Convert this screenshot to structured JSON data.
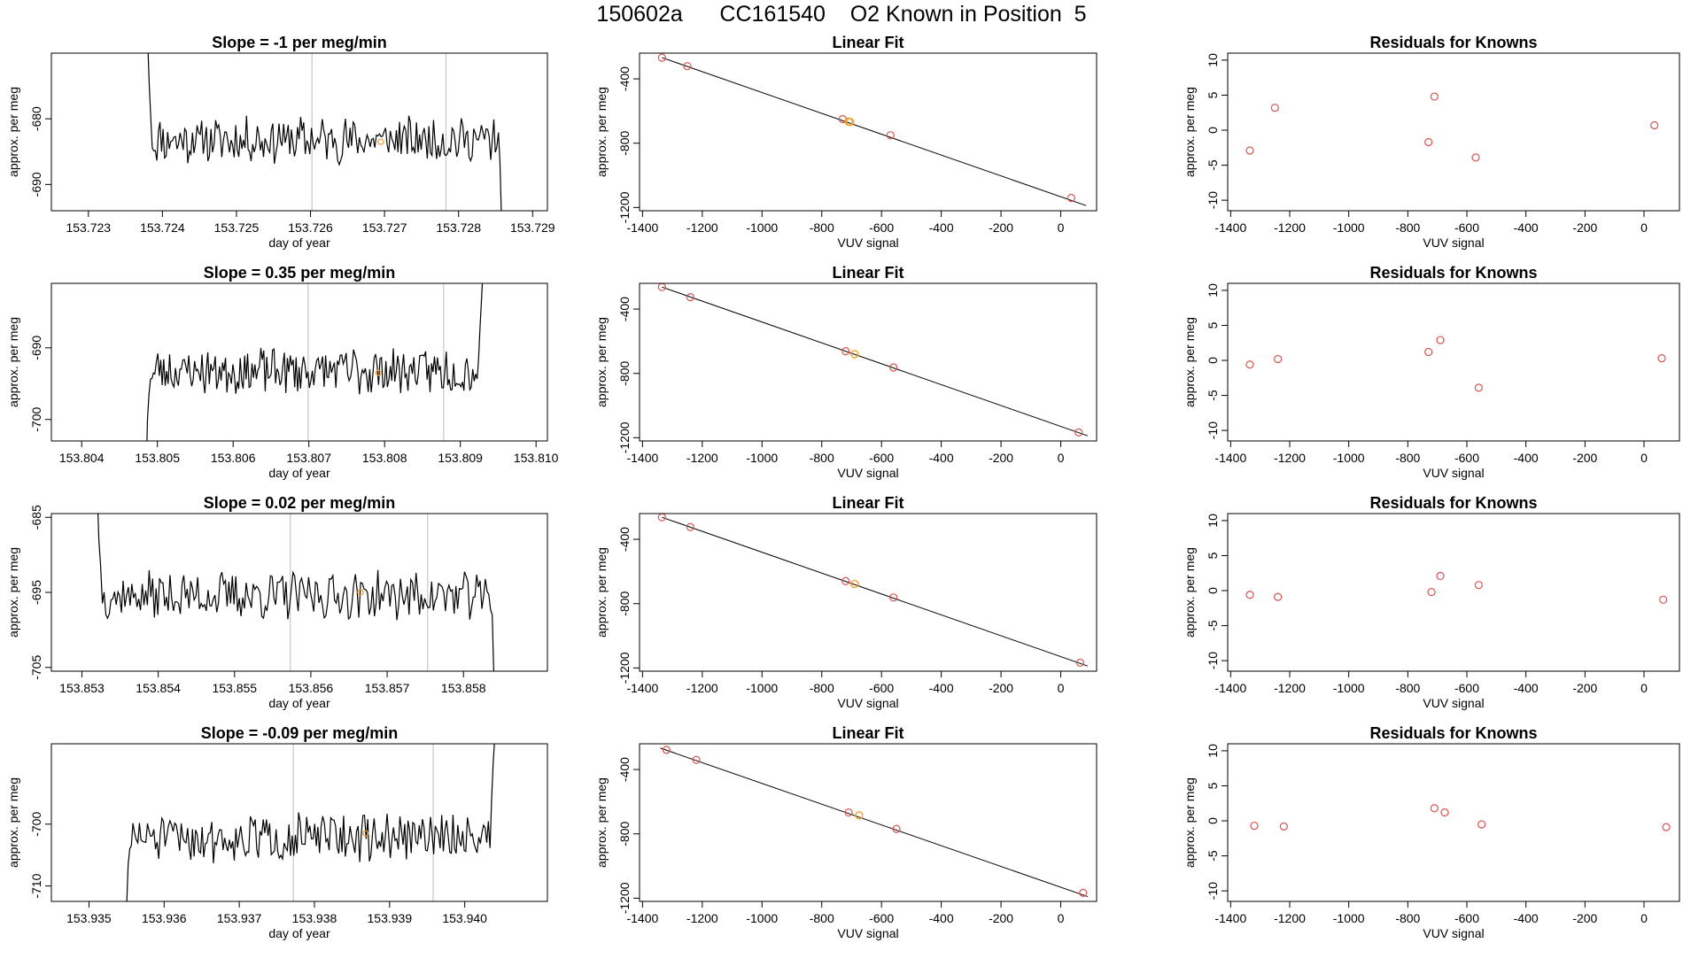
{
  "figure": {
    "title": "150602a      CC161540    O2 Known in Position  5"
  },
  "colors": {
    "trace": "#000000",
    "highlight": "#f0a030",
    "residual": "#d9534f",
    "vline": "#c8c8c8"
  },
  "chart_data": [
    {
      "id": "r1-timeseries",
      "type": "line",
      "title": "Slope =  -1  per meg/min",
      "xlabel": "day of year",
      "ylabel": "approx. per meg",
      "xlim": [
        153.7225,
        153.7292
      ],
      "ylim": [
        -694,
        -670
      ],
      "xticks": [
        153.723,
        153.724,
        153.725,
        153.726,
        153.727,
        153.728,
        153.729
      ],
      "xtick_labels": [
        "153.723",
        "153.724",
        "153.725",
        "153.726",
        "153.727",
        "153.728",
        "153.729"
      ],
      "yticks": [
        -680,
        -690
      ],
      "ytick_labels": [
        "-680",
        "-690"
      ],
      "vlines": [
        153.72602,
        153.72783
      ],
      "series_start": 153.7238,
      "series_end": 153.72858,
      "series_mean": -683.2,
      "series_noise": 1.9,
      "series_head": [
        -668,
        -674.5,
        -679.5
      ],
      "series_tail": [
        -686.5,
        -695.5
      ],
      "highlight_point": [
        153.72695,
        -683.5
      ],
      "seed": 11
    },
    {
      "id": "r1-fit",
      "type": "scatter",
      "title": "Linear Fit",
      "xlabel": "VUV signal",
      "ylabel": "approx. per meg",
      "xlim": [
        -1410,
        120
      ],
      "ylim": [
        -1220,
        -240
      ],
      "xticks": [
        -1400,
        -1200,
        -1000,
        -800,
        -600,
        -400,
        -200,
        0
      ],
      "xtick_labels": [
        "-1400",
        "-1200",
        "-1000",
        "-800",
        "-600",
        "-400",
        "-200",
        "0"
      ],
      "yticks": [
        -400,
        -800,
        -1200
      ],
      "ytick_labels": [
        "-400",
        "-800",
        "-1200"
      ],
      "line": {
        "x": [
          -1335,
          85
        ],
        "y": [
          -268,
          -1188
        ]
      },
      "points": [
        [
          -1335,
          -268
        ],
        [
          -1250,
          -321
        ],
        [
          -730,
          -650
        ],
        [
          -570,
          -751
        ],
        [
          35,
          -1140
        ]
      ],
      "highlight_points": [
        [
          -705,
          -668
        ],
        [
          -710,
          -666
        ]
      ],
      "seed": 0
    },
    {
      "id": "r1-resid",
      "type": "scatter",
      "title": "Residuals for Knowns",
      "xlabel": "VUV signal",
      "ylabel": "approx. per meg",
      "xlim": [
        -1410,
        120
      ],
      "ylim": [
        -11.5,
        11
      ],
      "xticks": [
        -1400,
        -1200,
        -1000,
        -800,
        -600,
        -400,
        -200,
        0
      ],
      "xtick_labels": [
        "-1400",
        "-1200",
        "-1000",
        "-800",
        "-600",
        "-400",
        "-200",
        "0"
      ],
      "yticks": [
        10,
        5,
        0,
        -5,
        -10
      ],
      "ytick_labels": [
        "10",
        "5",
        "0",
        "-5",
        "-10"
      ],
      "points": [
        [
          -1335,
          -2.9
        ],
        [
          -1250,
          3.2
        ],
        [
          -730,
          -1.7
        ],
        [
          -710,
          4.8
        ],
        [
          -570,
          -3.9
        ],
        [
          35,
          0.7
        ]
      ],
      "seed": 0
    },
    {
      "id": "r2-timeseries",
      "type": "line",
      "title": "Slope =  0.35  per meg/min",
      "xlabel": "day of year",
      "ylabel": "approx. per meg",
      "xlim": [
        153.8036,
        153.81015
      ],
      "ylim": [
        -703,
        -681
      ],
      "xticks": [
        153.804,
        153.805,
        153.806,
        153.807,
        153.808,
        153.809,
        153.81
      ],
      "xtick_labels": [
        "153.804",
        "153.805",
        "153.806",
        "153.807",
        "153.808",
        "153.809",
        "153.810"
      ],
      "yticks": [
        -690,
        -700
      ],
      "ytick_labels": [
        "-690",
        "-700"
      ],
      "vlines": [
        153.80699,
        153.80878
      ],
      "series_start": 153.80485,
      "series_end": 153.8093,
      "series_mean": -693.2,
      "series_noise": 1.8,
      "series_head": [
        -708,
        -700,
        -696.5
      ],
      "series_tail": [
        -687,
        -683,
        -679
      ],
      "highlight_point": [
        153.80792,
        -693.5
      ],
      "seed": 23
    },
    {
      "id": "r2-fit",
      "type": "scatter",
      "title": "Linear Fit",
      "xlabel": "VUV signal",
      "ylabel": "approx. per meg",
      "xlim": [
        -1410,
        120
      ],
      "ylim": [
        -1220,
        -240
      ],
      "xticks": [
        -1400,
        -1200,
        -1000,
        -800,
        -600,
        -400,
        -200,
        0
      ],
      "xtick_labels": [
        "-1400",
        "-1200",
        "-1000",
        "-800",
        "-600",
        "-400",
        "-200",
        "0"
      ],
      "yticks": [
        -400,
        -800,
        -1200
      ],
      "ytick_labels": [
        "-400",
        "-800",
        "-1200"
      ],
      "line": {
        "x": [
          -1335,
          90
        ],
        "y": [
          -263,
          -1188
        ]
      },
      "points": [
        [
          -1335,
          -263
        ],
        [
          -1240,
          -326
        ],
        [
          -720,
          -662
        ],
        [
          -560,
          -763
        ],
        [
          60,
          -1167
        ]
      ],
      "highlight_points": [
        [
          -690,
          -680
        ]
      ],
      "seed": 0
    },
    {
      "id": "r2-resid",
      "type": "scatter",
      "title": "Residuals for Knowns",
      "xlabel": "VUV signal",
      "ylabel": "approx. per meg",
      "xlim": [
        -1410,
        120
      ],
      "ylim": [
        -11.5,
        11
      ],
      "xticks": [
        -1400,
        -1200,
        -1000,
        -800,
        -600,
        -400,
        -200,
        0
      ],
      "xtick_labels": [
        "-1400",
        "-1200",
        "-1000",
        "-800",
        "-600",
        "-400",
        "-200",
        "0"
      ],
      "yticks": [
        10,
        5,
        0,
        -5,
        -10
      ],
      "ytick_labels": [
        "10",
        "5",
        "0",
        "-5",
        "-10"
      ],
      "points": [
        [
          -1335,
          -0.6
        ],
        [
          -1240,
          0.2
        ],
        [
          -730,
          1.2
        ],
        [
          -690,
          2.9
        ],
        [
          -560,
          -3.9
        ],
        [
          60,
          0.3
        ]
      ],
      "seed": 0
    },
    {
      "id": "r3-timeseries",
      "type": "line",
      "title": "Slope =  0.02  per meg/min",
      "xlabel": "day of year",
      "ylabel": "approx. per meg",
      "xlim": [
        153.8526,
        153.8591
      ],
      "ylim": [
        -705.5,
        -684.5
      ],
      "xticks": [
        153.853,
        153.854,
        153.855,
        153.856,
        153.857,
        153.858
      ],
      "xtick_labels": [
        "153.853",
        "153.854",
        "153.855",
        "153.856",
        "153.857",
        "153.858"
      ],
      "yticks": [
        -685,
        -695,
        -705
      ],
      "ytick_labels": [
        "-685",
        "-695",
        "-705"
      ],
      "vlines": [
        153.85573,
        153.85753
      ],
      "series_start": 153.8532,
      "series_end": 153.8584,
      "series_mean": -695.4,
      "series_noise": 1.7,
      "series_head": [
        -681,
        -688,
        -691.5
      ],
      "series_tail": [
        -698,
        -707
      ],
      "highlight_point": [
        153.85665,
        -695.0
      ],
      "seed": 37
    },
    {
      "id": "r3-fit",
      "type": "scatter",
      "title": "Linear Fit",
      "xlabel": "VUV signal",
      "ylabel": "approx. per meg",
      "xlim": [
        -1410,
        120
      ],
      "ylim": [
        -1220,
        -240
      ],
      "xticks": [
        -1400,
        -1200,
        -1000,
        -800,
        -600,
        -400,
        -200,
        0
      ],
      "xtick_labels": [
        "-1400",
        "-1200",
        "-1000",
        "-800",
        "-600",
        "-400",
        "-200",
        "0"
      ],
      "yticks": [
        -400,
        -800,
        -1200
      ],
      "ytick_labels": [
        "-400",
        "-800",
        "-1200"
      ],
      "line": {
        "x": [
          -1335,
          90
        ],
        "y": [
          -263,
          -1188
        ]
      },
      "points": [
        [
          -1335,
          -263
        ],
        [
          -1240,
          -324
        ],
        [
          -720,
          -660
        ],
        [
          -560,
          -762
        ],
        [
          65,
          -1167
        ]
      ],
      "highlight_points": [
        [
          -690,
          -678
        ]
      ],
      "seed": 0
    },
    {
      "id": "r3-resid",
      "type": "scatter",
      "title": "Residuals for Knowns",
      "xlabel": "VUV signal",
      "ylabel": "approx. per meg",
      "xlim": [
        -1410,
        120
      ],
      "ylim": [
        -11.5,
        11
      ],
      "xticks": [
        -1400,
        -1200,
        -1000,
        -800,
        -600,
        -400,
        -200,
        0
      ],
      "xtick_labels": [
        "-1400",
        "-1200",
        "-1000",
        "-800",
        "-600",
        "-400",
        "-200",
        "0"
      ],
      "yticks": [
        10,
        5,
        0,
        -5,
        -10
      ],
      "ytick_labels": [
        "10",
        "5",
        "0",
        "-5",
        "-10"
      ],
      "points": [
        [
          -1335,
          -0.6
        ],
        [
          -1240,
          -0.9
        ],
        [
          -720,
          -0.2
        ],
        [
          -690,
          2.1
        ],
        [
          -560,
          0.8
        ],
        [
          65,
          -1.3
        ]
      ],
      "seed": 0
    },
    {
      "id": "r4-timeseries",
      "type": "line",
      "title": "Slope =  -0.09  per meg/min",
      "xlabel": "day of year",
      "ylabel": "approx. per meg",
      "xlim": [
        153.9345,
        153.9411
      ],
      "ylim": [
        -712.5,
        -687
      ],
      "xticks": [
        153.935,
        153.936,
        153.937,
        153.938,
        153.939,
        153.94
      ],
      "xtick_labels": [
        "153.935",
        "153.936",
        "153.937",
        "153.938",
        "153.939",
        "153.940"
      ],
      "yticks": [
        -700,
        -710
      ],
      "ytick_labels": [
        "-700",
        "-710"
      ],
      "vlines": [
        153.93772,
        153.93958
      ],
      "series_start": 153.9355,
      "series_end": 153.9404,
      "series_mean": -702.2,
      "series_noise": 2.1,
      "series_head": [
        -714,
        -706.5,
        -704
      ],
      "series_tail": [
        -696,
        -690,
        -686
      ],
      "highlight_point": [
        153.93868,
        -701.5
      ],
      "seed": 51
    },
    {
      "id": "r4-fit",
      "type": "scatter",
      "title": "Linear Fit",
      "xlabel": "VUV signal",
      "ylabel": "approx. per meg",
      "xlim": [
        -1410,
        120
      ],
      "ylim": [
        -1220,
        -240
      ],
      "xticks": [
        -1400,
        -1200,
        -1000,
        -800,
        -600,
        -400,
        -200,
        0
      ],
      "xtick_labels": [
        "-1400",
        "-1200",
        "-1000",
        "-800",
        "-600",
        "-400",
        "-200",
        "0"
      ],
      "yticks": [
        -400,
        -800,
        -1200
      ],
      "ytick_labels": [
        "-400",
        "-800",
        "-1200"
      ],
      "line": {
        "x": [
          -1340,
          90
        ],
        "y": [
          -267,
          -1190
        ]
      },
      "points": [
        [
          -1320,
          -278
        ],
        [
          -1220,
          -340
        ],
        [
          -710,
          -667
        ],
        [
          -550,
          -770
        ],
        [
          75,
          -1167
        ]
      ],
      "highlight_points": [
        [
          -675,
          -685
        ]
      ],
      "seed": 0
    },
    {
      "id": "r4-resid",
      "type": "scatter",
      "title": "Residuals for Knowns",
      "xlabel": "VUV signal",
      "ylabel": "approx. per meg",
      "xlim": [
        -1410,
        120
      ],
      "ylim": [
        -11.5,
        11
      ],
      "xticks": [
        -1400,
        -1200,
        -1000,
        -800,
        -600,
        -400,
        -200,
        0
      ],
      "xtick_labels": [
        "-1400",
        "-1200",
        "-1000",
        "-800",
        "-600",
        "-400",
        "-200",
        "0"
      ],
      "yticks": [
        10,
        5,
        0,
        -5,
        -10
      ],
      "ytick_labels": [
        "10",
        "5",
        "0",
        "-5",
        "-10"
      ],
      "points": [
        [
          -1320,
          -0.7
        ],
        [
          -1220,
          -0.8
        ],
        [
          -710,
          1.8
        ],
        [
          -675,
          1.2
        ],
        [
          -550,
          -0.5
        ],
        [
          75,
          -0.9
        ]
      ],
      "seed": 0
    }
  ]
}
